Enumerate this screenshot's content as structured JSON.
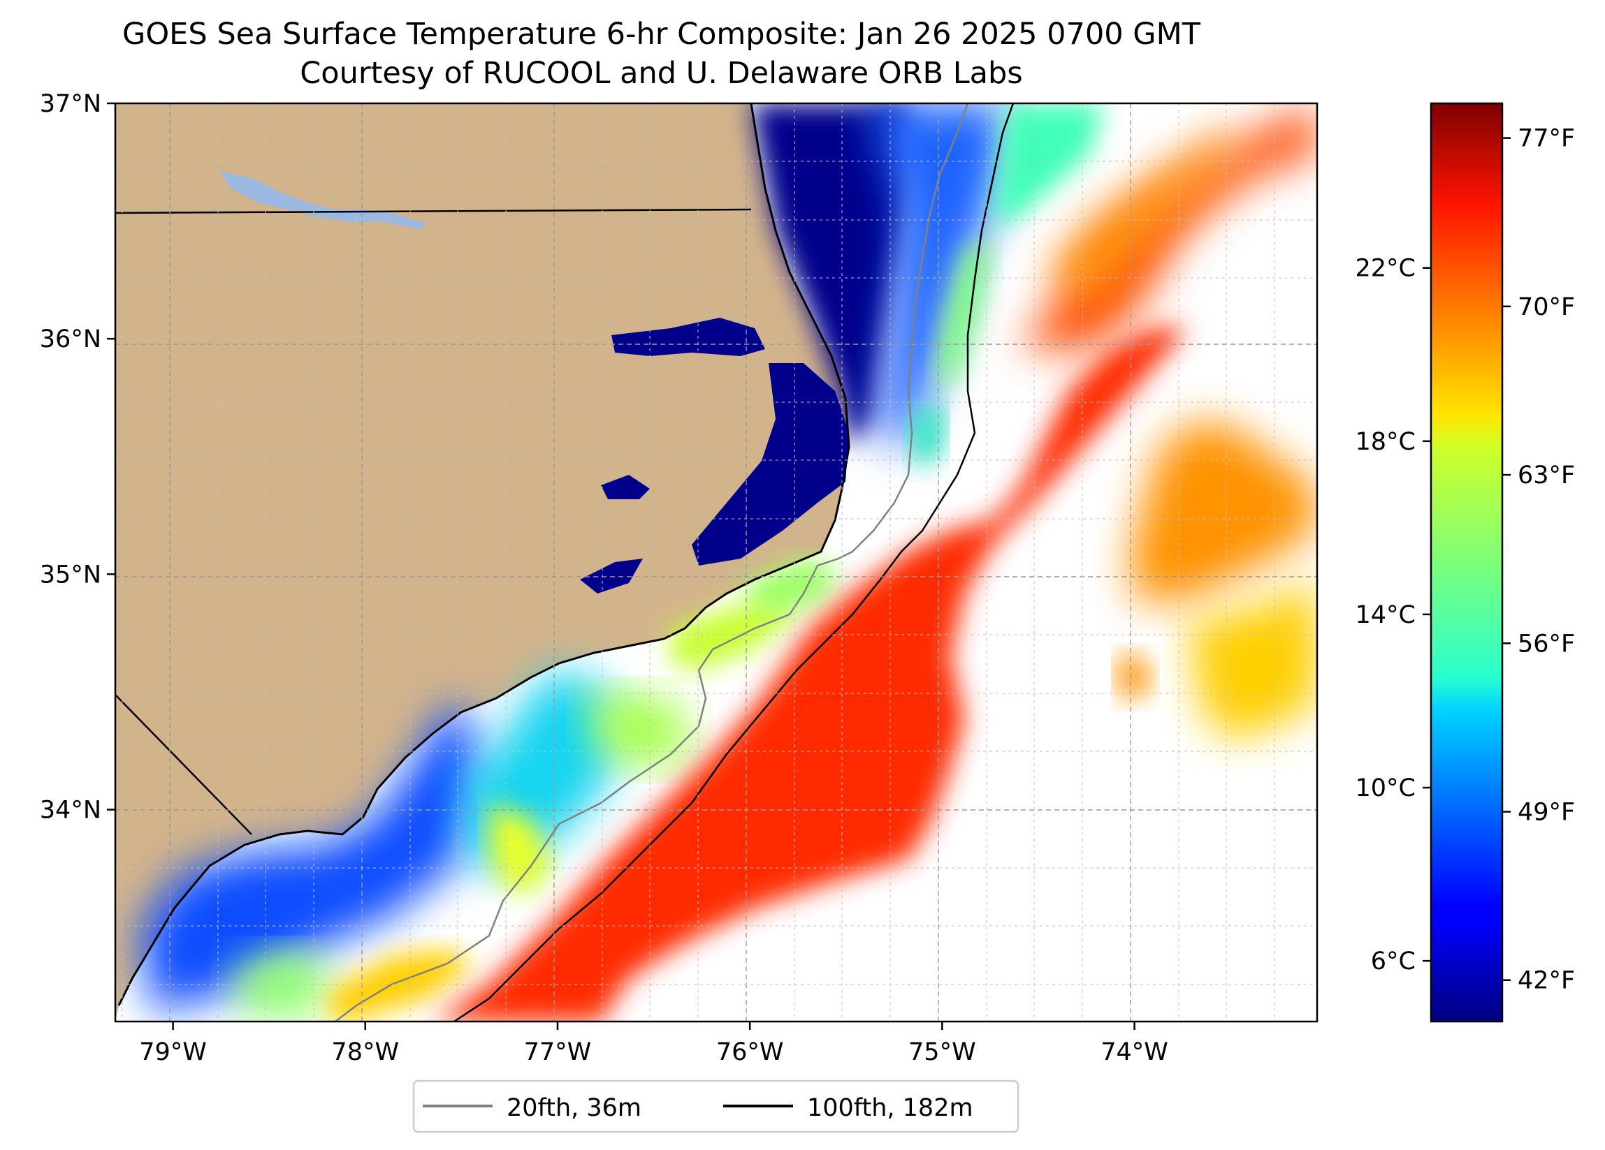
{
  "title": {
    "line1": "GOES Sea Surface Temperature 6-hr Composite: Jan 26 2025 0700 GMT",
    "line2": "Courtesy of RUCOOL and U. Delaware ORB Labs"
  },
  "map": {
    "projection": "PlateCarree",
    "lon_range": [
      -79.3,
      -73.05
    ],
    "lat_range": [
      33.1,
      37.0
    ],
    "x_ticks": [
      {
        "value": -79,
        "label": "79°W"
      },
      {
        "value": -78,
        "label": "78°W"
      },
      {
        "value": -77,
        "label": "77°W"
      },
      {
        "value": -76,
        "label": "76°W"
      },
      {
        "value": -75,
        "label": "75°W"
      },
      {
        "value": -74,
        "label": "74°W"
      }
    ],
    "y_ticks": [
      {
        "value": 37,
        "label": "37°N"
      },
      {
        "value": 36,
        "label": "36°N"
      },
      {
        "value": 35,
        "label": "35°N"
      },
      {
        "value": 34,
        "label": "34°N"
      }
    ],
    "gridlines": true,
    "land_color": "#d2b48c",
    "lake_color": "#9ab8e0",
    "missing_data_color": "#ffffff"
  },
  "legend": {
    "location": "lower center",
    "entries": [
      {
        "label": "20fth, 36m",
        "color": "#808080"
      },
      {
        "label": "100fth, 182m",
        "color": "#000000"
      }
    ]
  },
  "colorbar": {
    "colormap": "jet",
    "range_c": [
      4.6,
      25.8
    ],
    "celsius_ticks": [
      {
        "value": 6,
        "label": "6°C"
      },
      {
        "value": 10,
        "label": "10°C"
      },
      {
        "value": 14,
        "label": "14°C"
      },
      {
        "value": 18,
        "label": "18°C"
      },
      {
        "value": 22,
        "label": "22°C"
      }
    ],
    "fahrenheit_ticks": [
      {
        "value": 42,
        "label": "42°F"
      },
      {
        "value": 49,
        "label": "49°F"
      },
      {
        "value": 56,
        "label": "56°F"
      },
      {
        "value": 63,
        "label": "63°F"
      },
      {
        "value": 70,
        "label": "70°F"
      },
      {
        "value": 77,
        "label": "77°F"
      }
    ]
  }
}
